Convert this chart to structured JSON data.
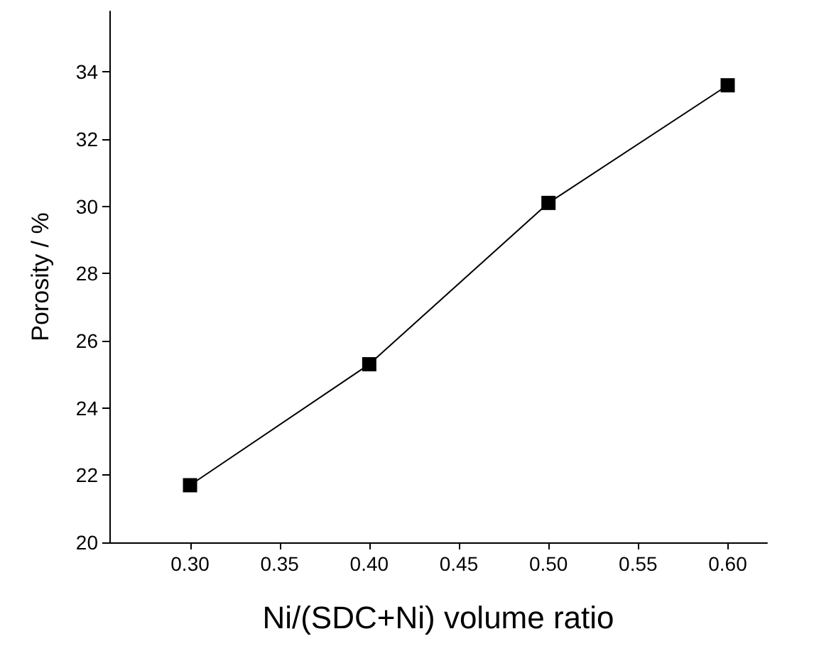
{
  "chart_data": {
    "type": "line",
    "xlabel": "Ni/(SDC+Ni) volume ratio",
    "ylabel": "Porosity / %",
    "x": [
      0.3,
      0.4,
      0.5,
      0.6
    ],
    "series": [
      {
        "color": "#000000",
        "values": [
          21.7,
          25.3,
          30.1,
          33.6
        ]
      }
    ],
    "xlim": [
      0.255,
      0.622
    ],
    "ylim": [
      20,
      35.8
    ],
    "xticks": [
      {
        "value": 0.3,
        "label": "0.30"
      },
      {
        "value": 0.35,
        "label": "0.35"
      },
      {
        "value": 0.4,
        "label": "0.40"
      },
      {
        "value": 0.45,
        "label": "0.45"
      },
      {
        "value": 0.5,
        "label": "0.50"
      },
      {
        "value": 0.55,
        "label": "0.55"
      },
      {
        "value": 0.6,
        "label": "0.60"
      }
    ],
    "yticks": [
      20,
      22,
      24,
      26,
      28,
      30,
      32,
      34
    ],
    "marker": "square",
    "line_style": "solid"
  }
}
